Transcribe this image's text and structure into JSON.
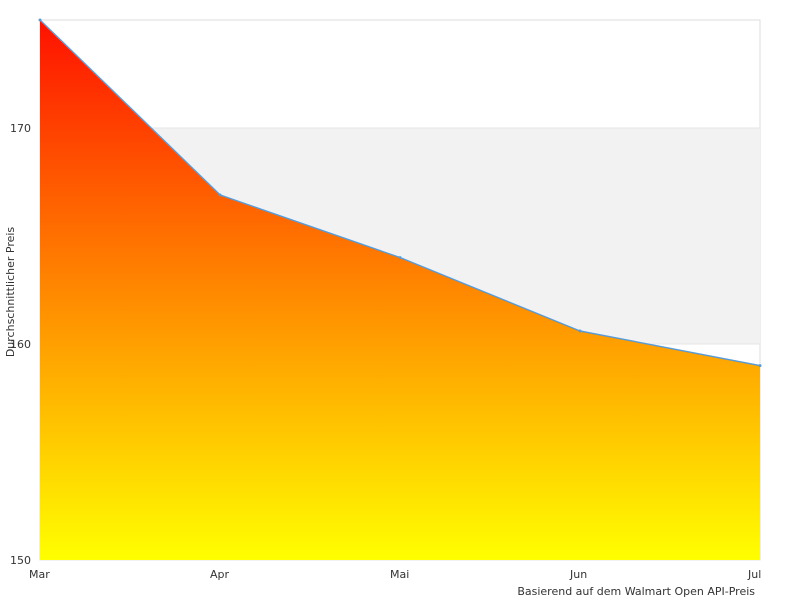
{
  "chart_data": {
    "type": "area",
    "title": "",
    "xlabel": "",
    "ylabel": "Durchschnittlicher Preis",
    "source_note": "Basierend auf dem Walmart Open API-Preis",
    "categories": [
      "Mar",
      "Apr",
      "Mai",
      "Jun",
      "Jul"
    ],
    "values": [
      175,
      166.9,
      164,
      160.6,
      159
    ],
    "ylim": [
      150,
      175
    ],
    "yticks": [
      150,
      160,
      170
    ],
    "grid": true,
    "band_color": "#f2f2f2",
    "line_color": "#5b9bd5",
    "fill_gradient": [
      "#ff1100",
      "#ff8800",
      "#ffff00"
    ]
  }
}
